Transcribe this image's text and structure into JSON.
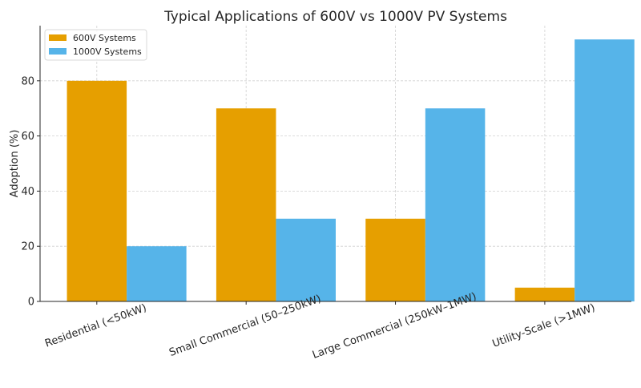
{
  "chart_data": {
    "type": "bar",
    "title": "Typical Applications of 600V vs 1000V PV Systems",
    "xlabel": "",
    "ylabel": "Adoption (%)",
    "categories": [
      "Residential (<50kW)",
      "Small Commercial (50–250kW)",
      "Large Commercial (250kW–1MW)",
      "Utility-Scale (>1MW)"
    ],
    "series": [
      {
        "name": "600V Systems",
        "values": [
          80,
          70,
          30,
          5
        ],
        "color": "#E69F00"
      },
      {
        "name": "1000V Systems",
        "values": [
          20,
          30,
          70,
          95
        ],
        "color": "#56B4E9"
      }
    ],
    "ylim": [
      0,
      100
    ],
    "yticks": [
      0,
      20,
      40,
      60,
      80
    ],
    "grid": true,
    "legend_position": "top-left",
    "xtick_rotation": 20
  }
}
